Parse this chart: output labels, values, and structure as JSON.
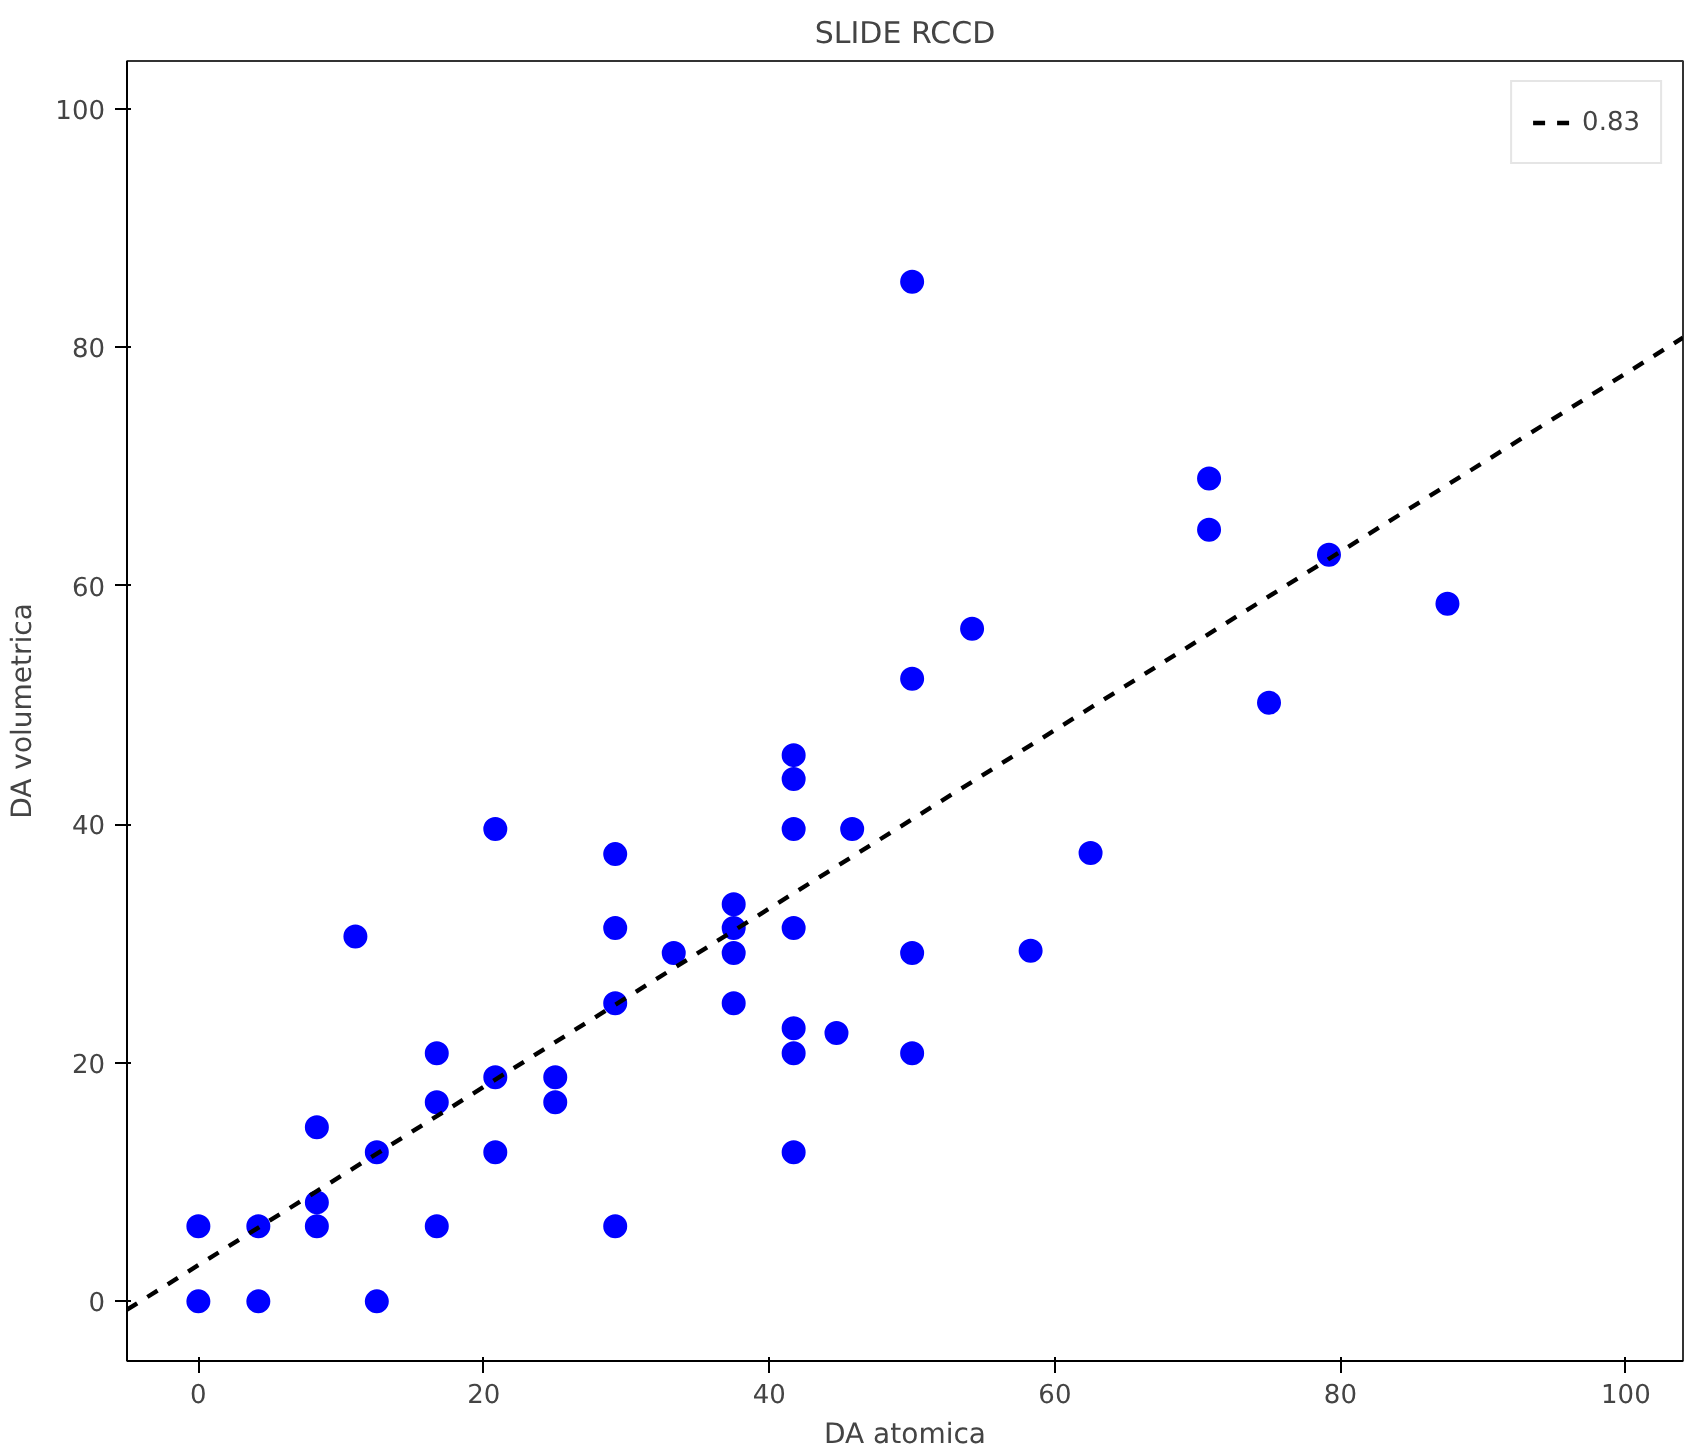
{
  "chart_data": {
    "type": "scatter",
    "title": "SLIDE RCCD",
    "xlabel": "DA atomica",
    "ylabel": "DA volumetrica",
    "xlim": [
      -5,
      104
    ],
    "ylim": [
      -5,
      104
    ],
    "xticks": [
      0,
      20,
      40,
      60,
      80,
      100
    ],
    "yticks": [
      0,
      20,
      40,
      60,
      80,
      100
    ],
    "grid": false,
    "legend": "top right",
    "series": [
      {
        "color": "#0000ff",
        "marker": "circle",
        "x": [
          0,
          0,
          4.2,
          4.2,
          8.3,
          8.3,
          8.3,
          11,
          12.5,
          12.5,
          16.7,
          16.7,
          16.7,
          20.8,
          20.8,
          20.8,
          25,
          25,
          29.2,
          29.2,
          29.2,
          29.2,
          33.3,
          37.5,
          37.5,
          37.5,
          37.5,
          41.7,
          41.7,
          41.7,
          41.7,
          41.7,
          41.7,
          41.7,
          44.7,
          45.8,
          50,
          50,
          50,
          50,
          54.2,
          58.3,
          62.5,
          70.8,
          70.8,
          75,
          79.2,
          87.5
        ],
        "values": [
          0,
          6.3,
          0,
          6.3,
          6.3,
          8.3,
          14.6,
          30.6,
          0,
          12.5,
          6.3,
          16.7,
          20.8,
          12.5,
          18.8,
          39.6,
          16.7,
          18.8,
          6.3,
          25,
          31.3,
          37.5,
          29.2,
          25,
          29.2,
          31.3,
          33.3,
          12.5,
          20.8,
          22.9,
          31.3,
          39.6,
          43.8,
          45.8,
          22.5,
          39.6,
          20.8,
          29.2,
          52.2,
          85.5,
          56.4,
          29.4,
          37.6,
          64.7,
          69,
          50.2,
          62.6,
          58.5
        ]
      },
      {
        "type": "line",
        "name": "0.83",
        "color": "#000000",
        "line_style": "dashed",
        "x": [
          -5,
          104
        ],
        "values": [
          -0.7,
          80.8
        ]
      }
    ]
  }
}
